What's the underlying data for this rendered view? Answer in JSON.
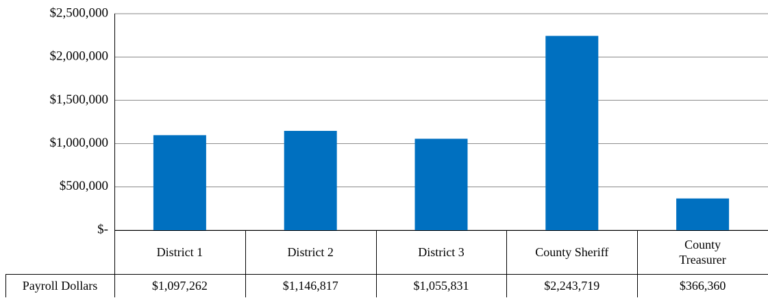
{
  "chart_data": {
    "type": "bar",
    "categories": [
      "District 1",
      "District 2",
      "District 3",
      "County Sheriff",
      "County Treasurer"
    ],
    "series": [
      {
        "name": "Payroll Dollars",
        "color": "#0070c0",
        "values": [
          1097262,
          1146817,
          1055831,
          2243719,
          366360
        ],
        "value_labels": [
          "$1,097,262",
          "$1,146,817",
          "$1,055,831",
          "$2,243,719",
          "$366,360"
        ]
      }
    ],
    "ylim": [
      0,
      2500000
    ],
    "yticks": [
      {
        "value": 0,
        "label": "$-"
      },
      {
        "value": 500000,
        "label": "$500,000"
      },
      {
        "value": 1000000,
        "label": "$1,000,000"
      },
      {
        "value": 1500000,
        "label": "$1,500,000"
      },
      {
        "value": 2000000,
        "label": "$2,000,000"
      },
      {
        "value": 2500000,
        "label": "$2,500,000"
      }
    ],
    "grid": true
  }
}
